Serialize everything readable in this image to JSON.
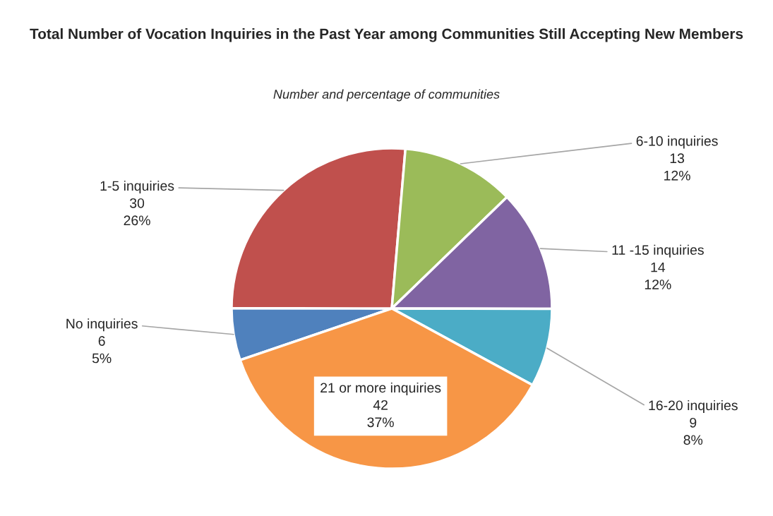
{
  "chart_data": {
    "type": "pie",
    "title": "Total Number of Vocation Inquiries in the Past Year among Communities Still Accepting New Members",
    "subtitle": "Number and percentage of communities",
    "categories": [
      "No inquiries",
      "1-5 inquiries",
      "6-10 inquiries",
      "11 -15 inquiries",
      "16-20 inquiries",
      "21 or more inquiries"
    ],
    "values": [
      6,
      30,
      13,
      14,
      9,
      42
    ],
    "value_labels": [
      "6\n5%",
      "30\n26%",
      "13\n12%",
      "14\n12%",
      "9\n8%",
      "42\n37%"
    ],
    "colors": [
      "#4f81bd",
      "#c0504d",
      "#9bbb59",
      "#8064a2",
      "#4bacc6",
      "#f79646"
    ],
    "legend": false
  }
}
